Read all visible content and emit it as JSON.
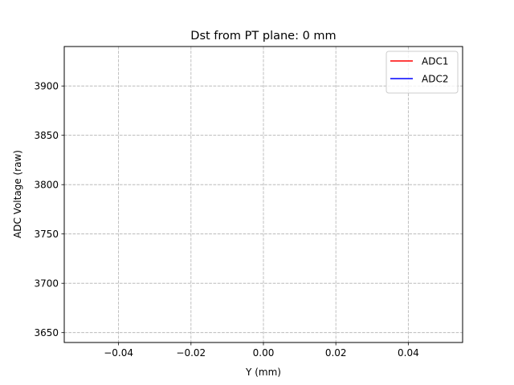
{
  "chart_data": {
    "type": "line",
    "title": "Dst from PT plane: 0 mm",
    "xlabel": "Y (mm)",
    "ylabel": "ADC Voltage (raw)",
    "xlim": [
      -0.055,
      0.055
    ],
    "ylim": [
      3640,
      3940
    ],
    "xticks": [
      -0.04,
      -0.02,
      0.0,
      0.02,
      0.04
    ],
    "xtick_labels": [
      "−0.04",
      "−0.02",
      "0.00",
      "0.02",
      "0.04"
    ],
    "yticks": [
      3650,
      3700,
      3750,
      3800,
      3850,
      3900
    ],
    "ytick_labels": [
      "3650",
      "3700",
      "3750",
      "3800",
      "3850",
      "3900"
    ],
    "grid": true,
    "grid_style": "dashed",
    "legend_position": "top-right",
    "series": [
      {
        "name": "ADC1",
        "color": "#ff0000",
        "x": [],
        "y": []
      },
      {
        "name": "ADC2",
        "color": "#0000ff",
        "x": [],
        "y": []
      }
    ]
  }
}
